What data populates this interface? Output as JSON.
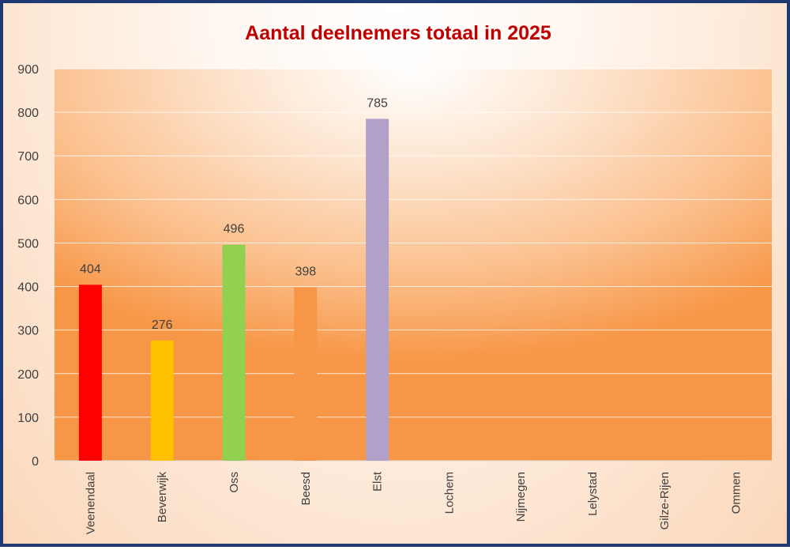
{
  "chart_data": {
    "type": "bar",
    "title": "Aantal deelnemers totaal in 2025",
    "xlabel": "",
    "ylabel": "",
    "ylim": [
      0,
      900
    ],
    "yticks": [
      0,
      100,
      200,
      300,
      400,
      500,
      600,
      700,
      800,
      900
    ],
    "grid": true,
    "legend": "none",
    "categories": [
      "Veenendaal",
      "Beverwijk",
      "Oss",
      "Beesd",
      "Elst",
      "Lochem",
      "Nijmegen",
      "Lelystad",
      "Gilze-Rijen",
      "Ommen"
    ],
    "values": [
      404,
      276,
      496,
      398,
      785,
      null,
      null,
      null,
      null,
      null
    ],
    "data_labels": [
      "404",
      "276",
      "496",
      "398",
      "785",
      "",
      "",
      "",
      "",
      ""
    ],
    "bar_colors": [
      "#ff0000",
      "#ffc000",
      "#92d050",
      "#f79646",
      "#b1a0c7",
      "#f79646",
      "#f79646",
      "#f79646",
      "#f79646",
      "#f79646"
    ],
    "title_color": "#c00000",
    "frame_color": "#1f3a73"
  }
}
